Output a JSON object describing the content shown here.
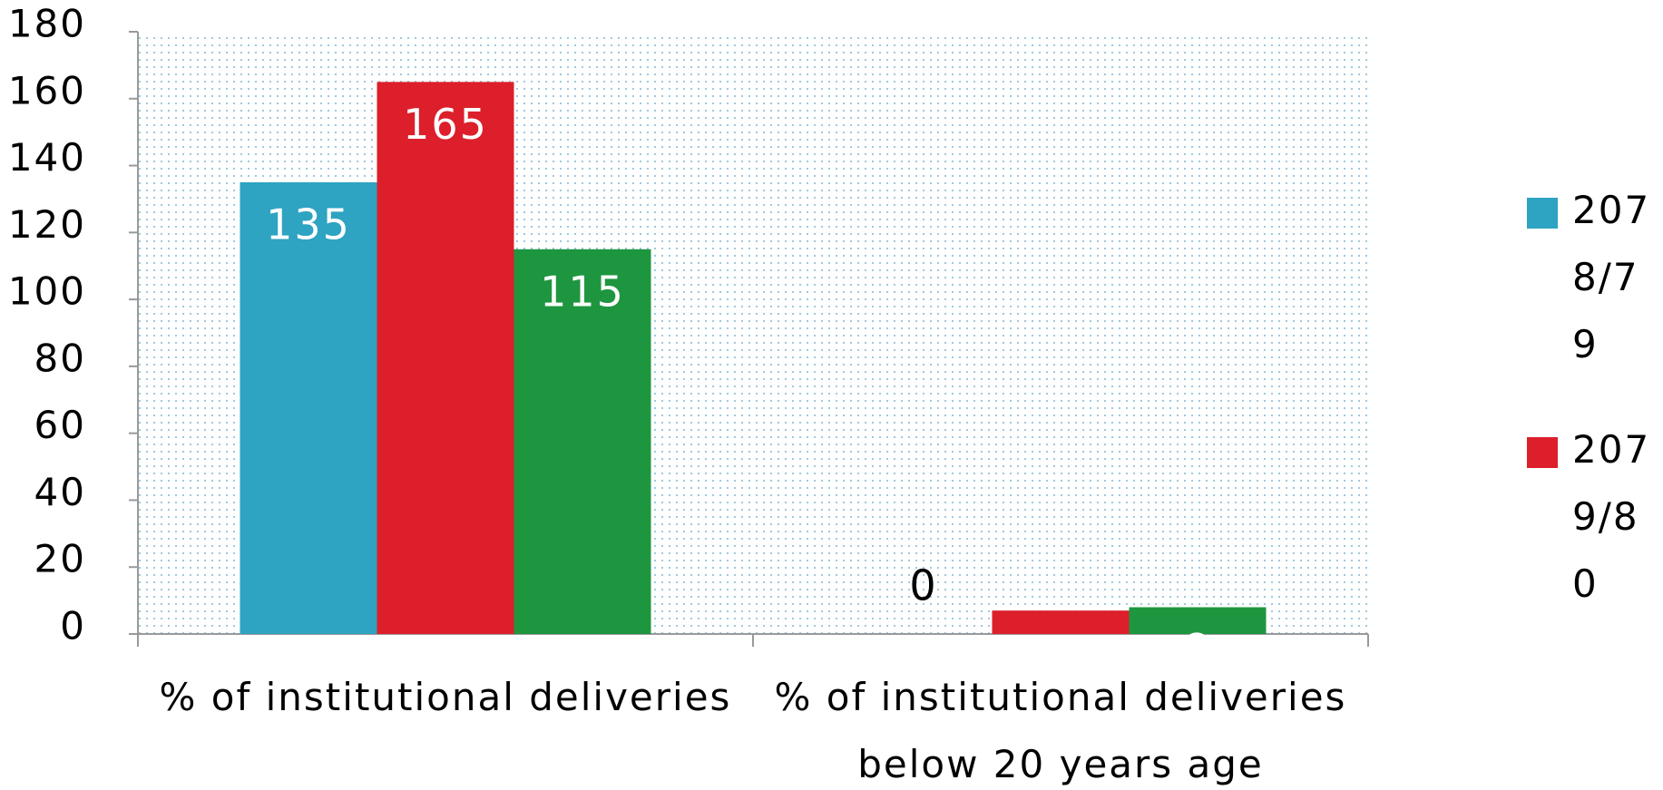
{
  "chart_data": {
    "type": "bar",
    "categories": [
      "% of institutional deliveries",
      "% of institutional deliveries below 20 years age"
    ],
    "series": [
      {
        "name": "2078/79",
        "color": "#2ea3c2",
        "values": [
          135,
          0
        ]
      },
      {
        "name": "2079/80",
        "color": "#dc1f2b",
        "values": [
          165,
          7
        ]
      },
      {
        "color": "#1e9640",
        "values": [
          115,
          8
        ]
      }
    ],
    "ylim": [
      0,
      180
    ],
    "yticks": [
      0,
      20,
      40,
      60,
      80,
      100,
      120,
      140,
      160,
      180
    ]
  }
}
